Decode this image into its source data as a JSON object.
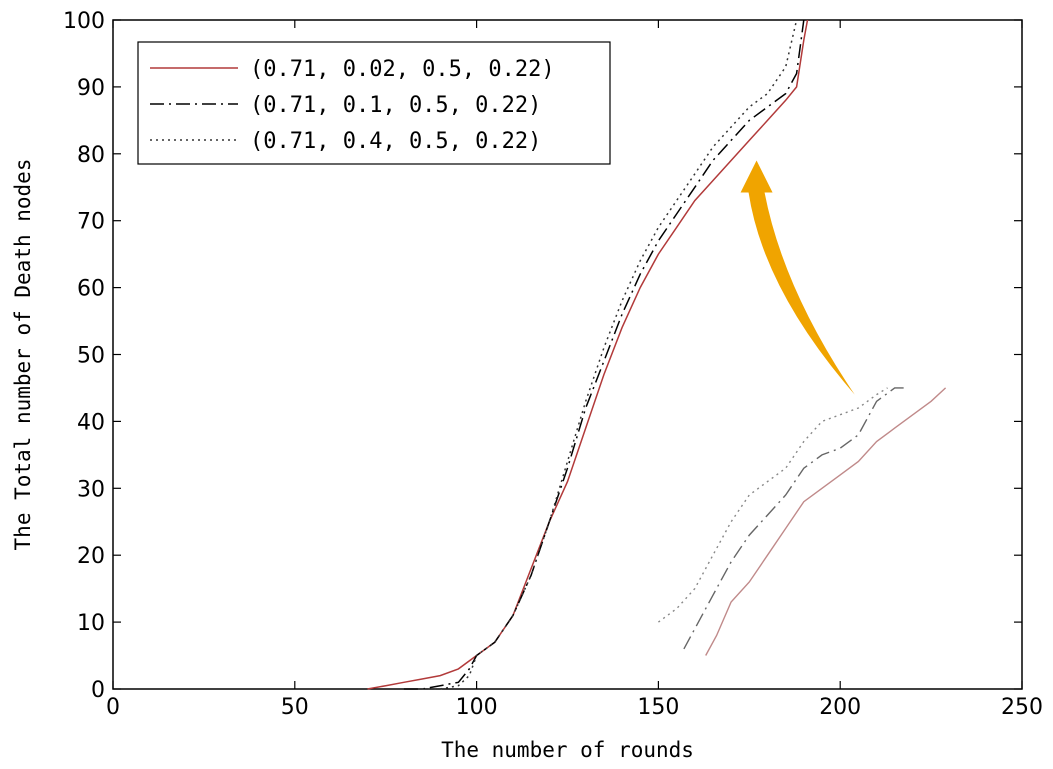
{
  "chart_data": {
    "type": "line",
    "title": "",
    "xlabel": "The number of rounds",
    "ylabel": "The Total number of Death nodes",
    "xlim": [
      0,
      250
    ],
    "ylim": [
      0,
      100
    ],
    "xticks": [
      0,
      50,
      100,
      150,
      200,
      250
    ],
    "yticks": [
      0,
      10,
      20,
      30,
      40,
      50,
      60,
      70,
      80,
      90,
      100
    ],
    "grid": false,
    "legend_position": "top-left",
    "series": [
      {
        "name": "(0.71, 0.02, 0.5, 0.22)",
        "color": "#b23a3a",
        "style": "solid",
        "x": [
          70,
          75,
          80,
          85,
          90,
          95,
          100,
          105,
          110,
          115,
          120,
          125,
          130,
          135,
          140,
          145,
          150,
          155,
          160,
          165,
          170,
          175,
          180,
          185,
          188,
          190,
          191
        ],
        "y": [
          0,
          0.5,
          1,
          1.5,
          2,
          3,
          5,
          7,
          11,
          18,
          25,
          31,
          39,
          47,
          54,
          60,
          65,
          69,
          73,
          76,
          79,
          82,
          85,
          88,
          90,
          97,
          100
        ]
      },
      {
        "name": "(0.71, 0.1, 0.5, 0.22)",
        "color": "#000000",
        "style": "dashdot",
        "x": [
          80,
          85,
          90,
          95,
          98,
          100,
          105,
          110,
          115,
          120,
          125,
          130,
          135,
          140,
          145,
          150,
          155,
          160,
          165,
          170,
          175,
          180,
          185,
          188,
          190
        ],
        "y": [
          0,
          0,
          0.5,
          1,
          3,
          5,
          7,
          11,
          17,
          25,
          33,
          42,
          49,
          56,
          62,
          67,
          71,
          75,
          79,
          82,
          85,
          87,
          89,
          92,
          100
        ]
      },
      {
        "name": "(0.71, 0.4, 0.5, 0.22)",
        "color": "#333333",
        "style": "dotted",
        "x": [
          85,
          90,
          95,
          98,
          100,
          105,
          110,
          115,
          120,
          125,
          130,
          135,
          140,
          145,
          150,
          155,
          160,
          165,
          170,
          175,
          180,
          185,
          188
        ],
        "y": [
          0,
          0,
          0.5,
          2,
          5,
          7,
          11,
          17,
          25,
          34,
          43,
          51,
          58,
          64,
          69,
          73,
          77,
          81,
          84,
          87,
          89,
          93,
          100
        ]
      }
    ],
    "inset_series": [
      {
        "name": "(0.71, 0.02, 0.5, 0.22)",
        "color": "#c08a8a",
        "style": "solid",
        "x": [
          163,
          166,
          170,
          175,
          180,
          185,
          190,
          195,
          200,
          205,
          210,
          215,
          220,
          225,
          229
        ],
        "y": [
          5,
          8,
          13,
          16,
          20,
          24,
          28,
          30,
          32,
          34,
          37,
          39,
          41,
          43,
          45
        ]
      },
      {
        "name": "(0.71, 0.1, 0.5, 0.22)",
        "color": "#666666",
        "style": "dashdot",
        "x": [
          157,
          160,
          165,
          170,
          175,
          180,
          185,
          190,
          195,
          200,
          205,
          210,
          215,
          218
        ],
        "y": [
          6,
          9,
          14,
          19,
          23,
          26,
          29,
          33,
          35,
          36,
          38,
          43,
          45,
          45
        ]
      },
      {
        "name": "(0.71, 0.4, 0.5, 0.22)",
        "color": "#888888",
        "style": "dotted",
        "x": [
          150,
          155,
          160,
          165,
          170,
          175,
          180,
          185,
          190,
          195,
          200,
          205,
          210,
          213
        ],
        "y": [
          10,
          12,
          15,
          20,
          25,
          29,
          31,
          33,
          37,
          40,
          41,
          42,
          44,
          45
        ]
      }
    ],
    "annotation": {
      "type": "arrow",
      "color": "#f0a400",
      "from": [
        204,
        44
      ],
      "to": [
        177,
        79
      ]
    }
  }
}
